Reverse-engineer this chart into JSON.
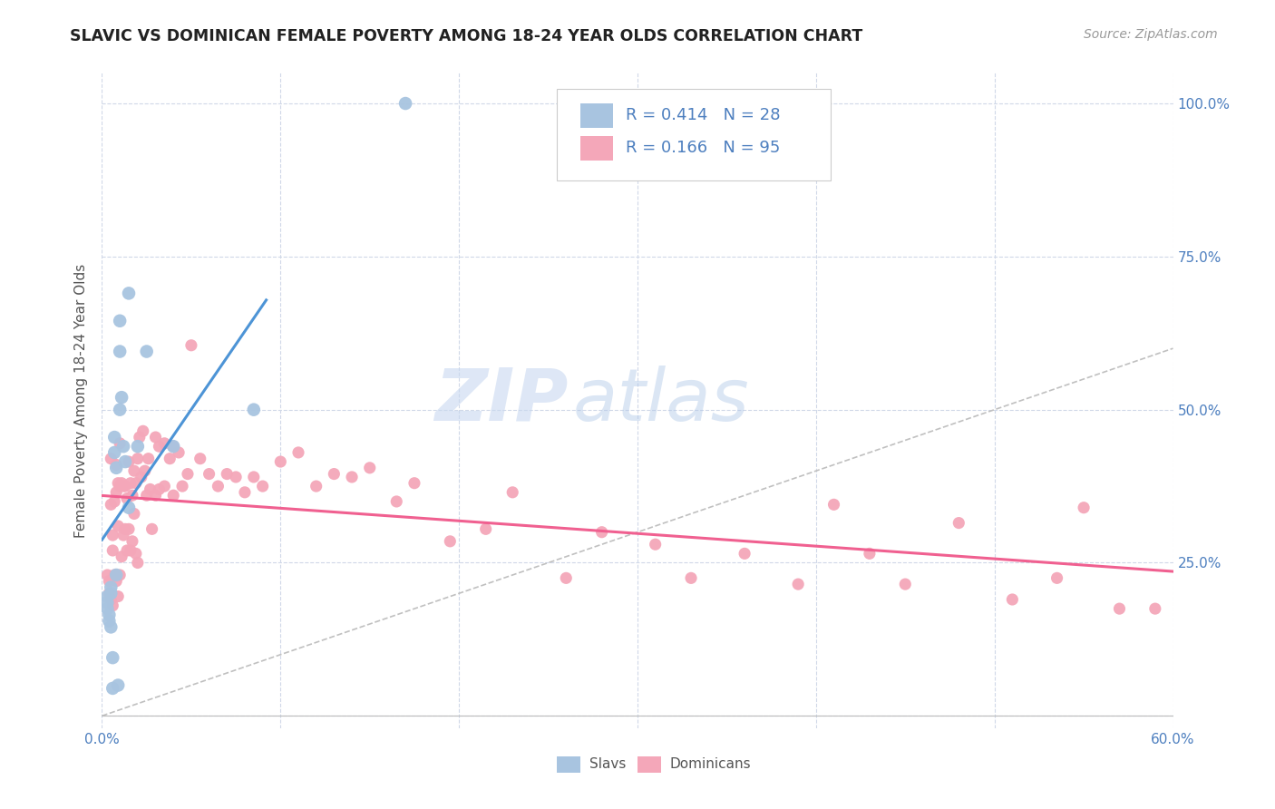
{
  "title": "SLAVIC VS DOMINICAN FEMALE POVERTY AMONG 18-24 YEAR OLDS CORRELATION CHART",
  "source": "Source: ZipAtlas.com",
  "ylabel": "Female Poverty Among 18-24 Year Olds",
  "xlim": [
    0.0,
    0.6
  ],
  "ylim": [
    -0.02,
    1.05
  ],
  "x_ticks": [
    0.0,
    0.1,
    0.2,
    0.3,
    0.4,
    0.5,
    0.6
  ],
  "x_tick_labels": [
    "0.0%",
    "",
    "",
    "",
    "",
    "",
    "60.0%"
  ],
  "y_ticks_right": [
    0.0,
    0.25,
    0.5,
    0.75,
    1.0
  ],
  "y_tick_labels_right": [
    "",
    "25.0%",
    "50.0%",
    "75.0%",
    "100.0%"
  ],
  "slavs_R": 0.414,
  "slavs_N": 28,
  "dominicans_R": 0.166,
  "dominicans_N": 95,
  "slav_color": "#a8c4e0",
  "dominican_color": "#f4a7b9",
  "slav_line_color": "#4d94d6",
  "dominican_line_color": "#f06090",
  "diagonal_color": "#c0c0c0",
  "legend_text_color": "#4d7fbf",
  "background_color": "#ffffff",
  "grid_color": "#d0d8e8",
  "watermark_zip": "ZIP",
  "watermark_atlas": "atlas",
  "slavs_x": [
    0.003,
    0.003,
    0.003,
    0.004,
    0.004,
    0.005,
    0.005,
    0.005,
    0.006,
    0.006,
    0.007,
    0.007,
    0.008,
    0.008,
    0.009,
    0.01,
    0.01,
    0.01,
    0.011,
    0.012,
    0.013,
    0.015,
    0.015,
    0.02,
    0.025,
    0.04,
    0.085,
    0.17
  ],
  "slavs_y": [
    0.195,
    0.185,
    0.175,
    0.165,
    0.155,
    0.21,
    0.2,
    0.145,
    0.095,
    0.045,
    0.455,
    0.43,
    0.405,
    0.23,
    0.05,
    0.645,
    0.595,
    0.5,
    0.52,
    0.44,
    0.415,
    0.69,
    0.34,
    0.44,
    0.595,
    0.44,
    0.5,
    1.0
  ],
  "dominicans_x": [
    0.003,
    0.004,
    0.004,
    0.005,
    0.005,
    0.005,
    0.006,
    0.006,
    0.006,
    0.007,
    0.007,
    0.008,
    0.008,
    0.008,
    0.009,
    0.009,
    0.009,
    0.01,
    0.01,
    0.01,
    0.011,
    0.011,
    0.012,
    0.012,
    0.013,
    0.013,
    0.014,
    0.014,
    0.015,
    0.015,
    0.016,
    0.016,
    0.017,
    0.017,
    0.018,
    0.018,
    0.019,
    0.019,
    0.02,
    0.02,
    0.021,
    0.022,
    0.023,
    0.024,
    0.025,
    0.026,
    0.027,
    0.028,
    0.03,
    0.03,
    0.032,
    0.032,
    0.035,
    0.035,
    0.038,
    0.04,
    0.04,
    0.043,
    0.045,
    0.048,
    0.05,
    0.055,
    0.06,
    0.065,
    0.07,
    0.075,
    0.08,
    0.085,
    0.09,
    0.1,
    0.11,
    0.12,
    0.13,
    0.14,
    0.15,
    0.165,
    0.175,
    0.195,
    0.215,
    0.23,
    0.26,
    0.28,
    0.31,
    0.33,
    0.36,
    0.39,
    0.41,
    0.43,
    0.45,
    0.48,
    0.51,
    0.535,
    0.55,
    0.57,
    0.59
  ],
  "dominicans_y": [
    0.23,
    0.22,
    0.2,
    0.42,
    0.345,
    0.19,
    0.295,
    0.27,
    0.18,
    0.35,
    0.23,
    0.41,
    0.365,
    0.22,
    0.38,
    0.31,
    0.195,
    0.445,
    0.375,
    0.23,
    0.38,
    0.26,
    0.375,
    0.295,
    0.375,
    0.305,
    0.355,
    0.27,
    0.415,
    0.305,
    0.38,
    0.27,
    0.36,
    0.285,
    0.4,
    0.33,
    0.38,
    0.265,
    0.42,
    0.25,
    0.455,
    0.39,
    0.465,
    0.4,
    0.36,
    0.42,
    0.37,
    0.305,
    0.455,
    0.36,
    0.44,
    0.37,
    0.445,
    0.375,
    0.42,
    0.44,
    0.36,
    0.43,
    0.375,
    0.395,
    0.605,
    0.42,
    0.395,
    0.375,
    0.395,
    0.39,
    0.365,
    0.39,
    0.375,
    0.415,
    0.43,
    0.375,
    0.395,
    0.39,
    0.405,
    0.35,
    0.38,
    0.285,
    0.305,
    0.365,
    0.225,
    0.3,
    0.28,
    0.225,
    0.265,
    0.215,
    0.345,
    0.265,
    0.215,
    0.315,
    0.19,
    0.225,
    0.34,
    0.175,
    0.175
  ]
}
